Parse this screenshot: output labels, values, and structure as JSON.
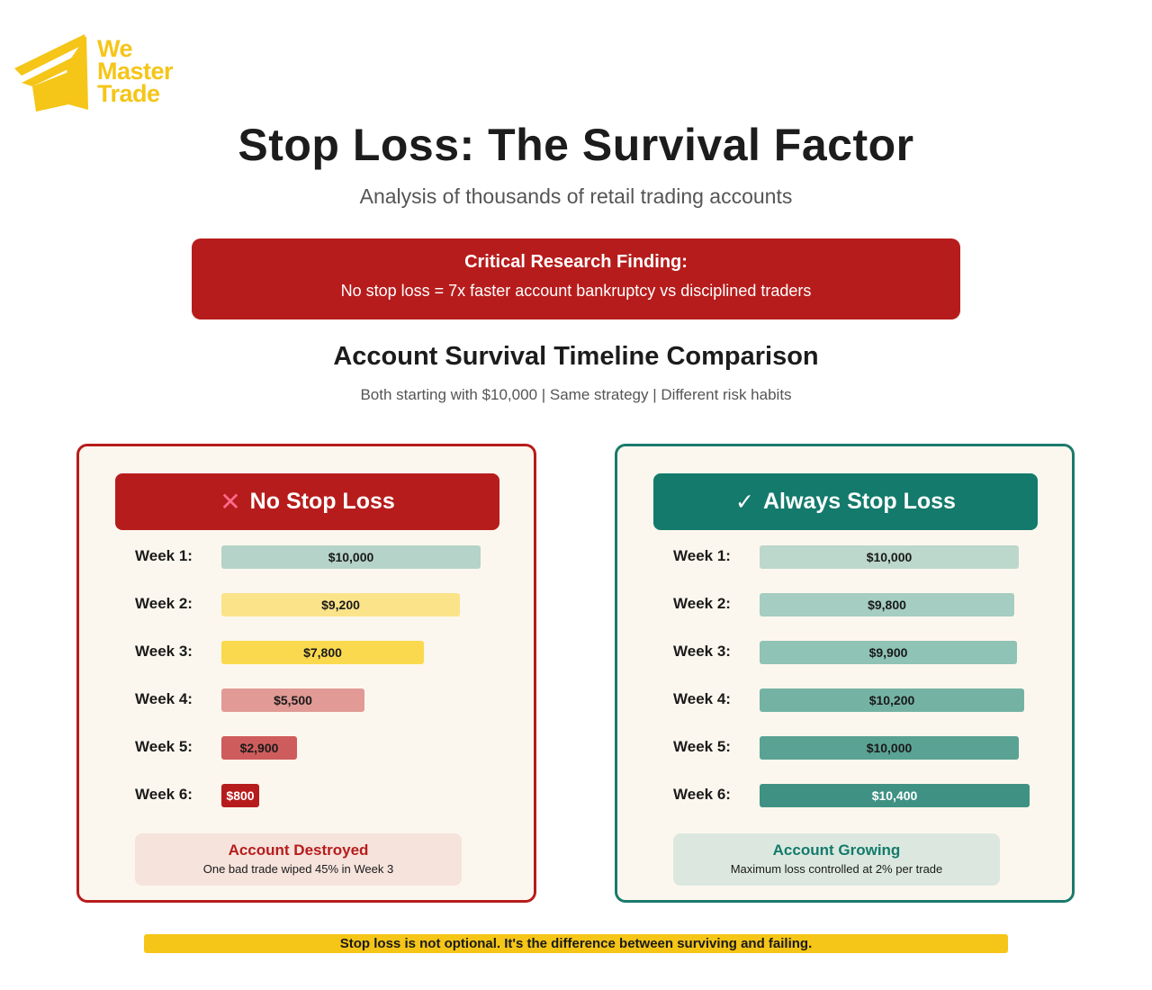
{
  "logo": {
    "lines": [
      "We",
      "Master",
      "Trade"
    ]
  },
  "title": "Stop Loss: The Survival Factor",
  "subtitle": "Analysis of thousands of retail trading accounts",
  "finding": {
    "title": "Critical Research Finding:",
    "text": "No stop loss = 7x faster account bankruptcy vs disciplined traders"
  },
  "section": {
    "title": "Account Survival Timeline Comparison",
    "subtitle": "Both starting with $10,000 | Same strategy | Different risk habits"
  },
  "colors": {
    "brand_yellow": "#f5c518",
    "red": "#b71c1c",
    "teal": "#137a6c"
  },
  "chart_data": [
    {
      "type": "bar",
      "orientation": "horizontal",
      "panel_title": "No Stop Loss",
      "icon": "x-icon",
      "categories": [
        "Week 1:",
        "Week 2:",
        "Week 3:",
        "Week 4:",
        "Week 5:",
        "Week 6:"
      ],
      "values": [
        10000,
        9200,
        7800,
        5500,
        2900,
        800
      ],
      "labels": [
        "$10,000",
        "$9,200",
        "$7,800",
        "$5,500",
        "$2,900",
        "$800"
      ],
      "colors": [
        "#b5d3c9",
        "#fbe38a",
        "#fbd94e",
        "#e19a95",
        "#cf5c5c",
        "#b71c1c"
      ],
      "label_colors": [
        "#1a1a1a",
        "#1a1a1a",
        "#1a1a1a",
        "#1a1a1a",
        "#1a1a1a",
        "#ffffff"
      ],
      "status_title": "Account Destroyed",
      "status_text": "One bad trade wiped 45% in Week 3"
    },
    {
      "type": "bar",
      "orientation": "horizontal",
      "panel_title": "Always Stop Loss",
      "icon": "check-icon",
      "categories": [
        "Week 1:",
        "Week 2:",
        "Week 3:",
        "Week 4:",
        "Week 5:",
        "Week 6:"
      ],
      "values": [
        10000,
        9800,
        9900,
        10200,
        10000,
        10400
      ],
      "labels": [
        "$10,000",
        "$9,800",
        "$9,900",
        "$10,200",
        "$10,000",
        "$10,400"
      ],
      "colors": [
        "#bcd7cc",
        "#a5cdc1",
        "#8ec3b5",
        "#74b3a4",
        "#5aa394",
        "#3f9283"
      ],
      "label_colors": [
        "#1a1a1a",
        "#1a1a1a",
        "#1a1a1a",
        "#1a1a1a",
        "#1a1a1a",
        "#ffffff"
      ],
      "status_title": "Account Growing",
      "status_text": "Maximum loss controlled at 2% per trade"
    }
  ],
  "footer": "Stop loss is not optional. It's the difference between surviving and failing."
}
